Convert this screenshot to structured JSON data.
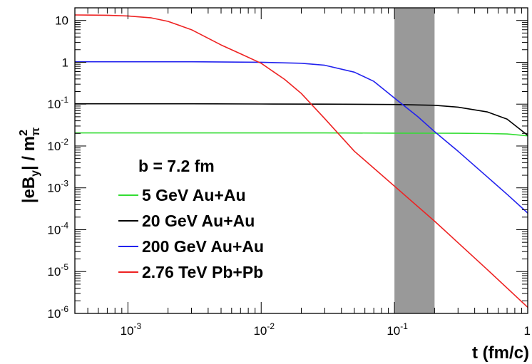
{
  "chart_data": {
    "type": "line",
    "title": "",
    "xlabel": "t (fm/c)",
    "ylabel": "|eB_y| / m_π^2",
    "ylabel_parts": {
      "main": "|eB",
      "sub_y": "y",
      "mid": "| / m",
      "sup": "2",
      "sub_pi": "π"
    },
    "x_scale": "log",
    "y_scale": "log",
    "xlim": [
      0.0004,
      1
    ],
    "ylim": [
      1e-06,
      20
    ],
    "x_ticks": [
      {
        "value": 0.001,
        "label": "10",
        "exp": "-3"
      },
      {
        "value": 0.01,
        "label": "10",
        "exp": "-2"
      },
      {
        "value": 0.1,
        "label": "10",
        "exp": "-1"
      },
      {
        "value": 1,
        "label": "1",
        "exp": ""
      }
    ],
    "y_ticks": [
      {
        "value": 1e-06,
        "label": "10",
        "exp": "-6"
      },
      {
        "value": 1e-05,
        "label": "10",
        "exp": "-5"
      },
      {
        "value": 0.0001,
        "label": "10",
        "exp": "-4"
      },
      {
        "value": 0.001,
        "label": "10",
        "exp": "-3"
      },
      {
        "value": 0.01,
        "label": "10",
        "exp": "-2"
      },
      {
        "value": 0.1,
        "label": "10",
        "exp": "-1"
      },
      {
        "value": 1,
        "label": "1",
        "exp": ""
      },
      {
        "value": 10,
        "label": "10",
        "exp": ""
      }
    ],
    "shaded_band": {
      "x_from": 0.1,
      "x_to": 0.2,
      "color": "#999999"
    },
    "annotation": "b = 7.2 fm",
    "legend_position": "center-left",
    "series": [
      {
        "name": "5 GeV Au+Au",
        "color": "#33dd33",
        "x": [
          0.0004,
          0.001,
          0.003,
          0.01,
          0.03,
          0.1,
          0.2,
          0.3,
          0.5,
          0.7,
          1.0
        ],
        "y": [
          0.0205,
          0.0205,
          0.0205,
          0.0205,
          0.0205,
          0.0203,
          0.0202,
          0.0201,
          0.0198,
          0.0194,
          0.0175
        ]
      },
      {
        "name": "20 GeV Au+Au",
        "color": "#000000",
        "x": [
          0.0004,
          0.001,
          0.003,
          0.01,
          0.03,
          0.1,
          0.2,
          0.3,
          0.5,
          0.7,
          1.0
        ],
        "y": [
          0.102,
          0.102,
          0.102,
          0.101,
          0.1,
          0.098,
          0.094,
          0.085,
          0.065,
          0.044,
          0.018
        ]
      },
      {
        "name": "200 GeV Au+Au",
        "color": "#2222ee",
        "x": [
          0.0004,
          0.001,
          0.003,
          0.01,
          0.02,
          0.03,
          0.05,
          0.07,
          0.1,
          0.15,
          0.2,
          0.3,
          0.5,
          0.7,
          1.0
        ],
        "y": [
          1.03,
          1.03,
          1.03,
          1.0,
          0.95,
          0.85,
          0.58,
          0.35,
          0.14,
          0.05,
          0.022,
          0.0075,
          0.0018,
          0.0007,
          0.00025
        ]
      },
      {
        "name": "2.76 TeV Pb+Pb",
        "color": "#ee2222",
        "x": [
          0.0004,
          0.0007,
          0.001,
          0.0015,
          0.002,
          0.003,
          0.005,
          0.007,
          0.01,
          0.015,
          0.02,
          0.03,
          0.05,
          0.1,
          0.2,
          0.5,
          1.0
        ],
        "y": [
          13.5,
          13.3,
          12.8,
          11.5,
          9.5,
          6.0,
          2.6,
          1.6,
          0.95,
          0.39,
          0.18,
          0.045,
          0.0075,
          0.0011,
          0.00016,
          1.1e-05,
          1.4e-06
        ]
      }
    ]
  }
}
